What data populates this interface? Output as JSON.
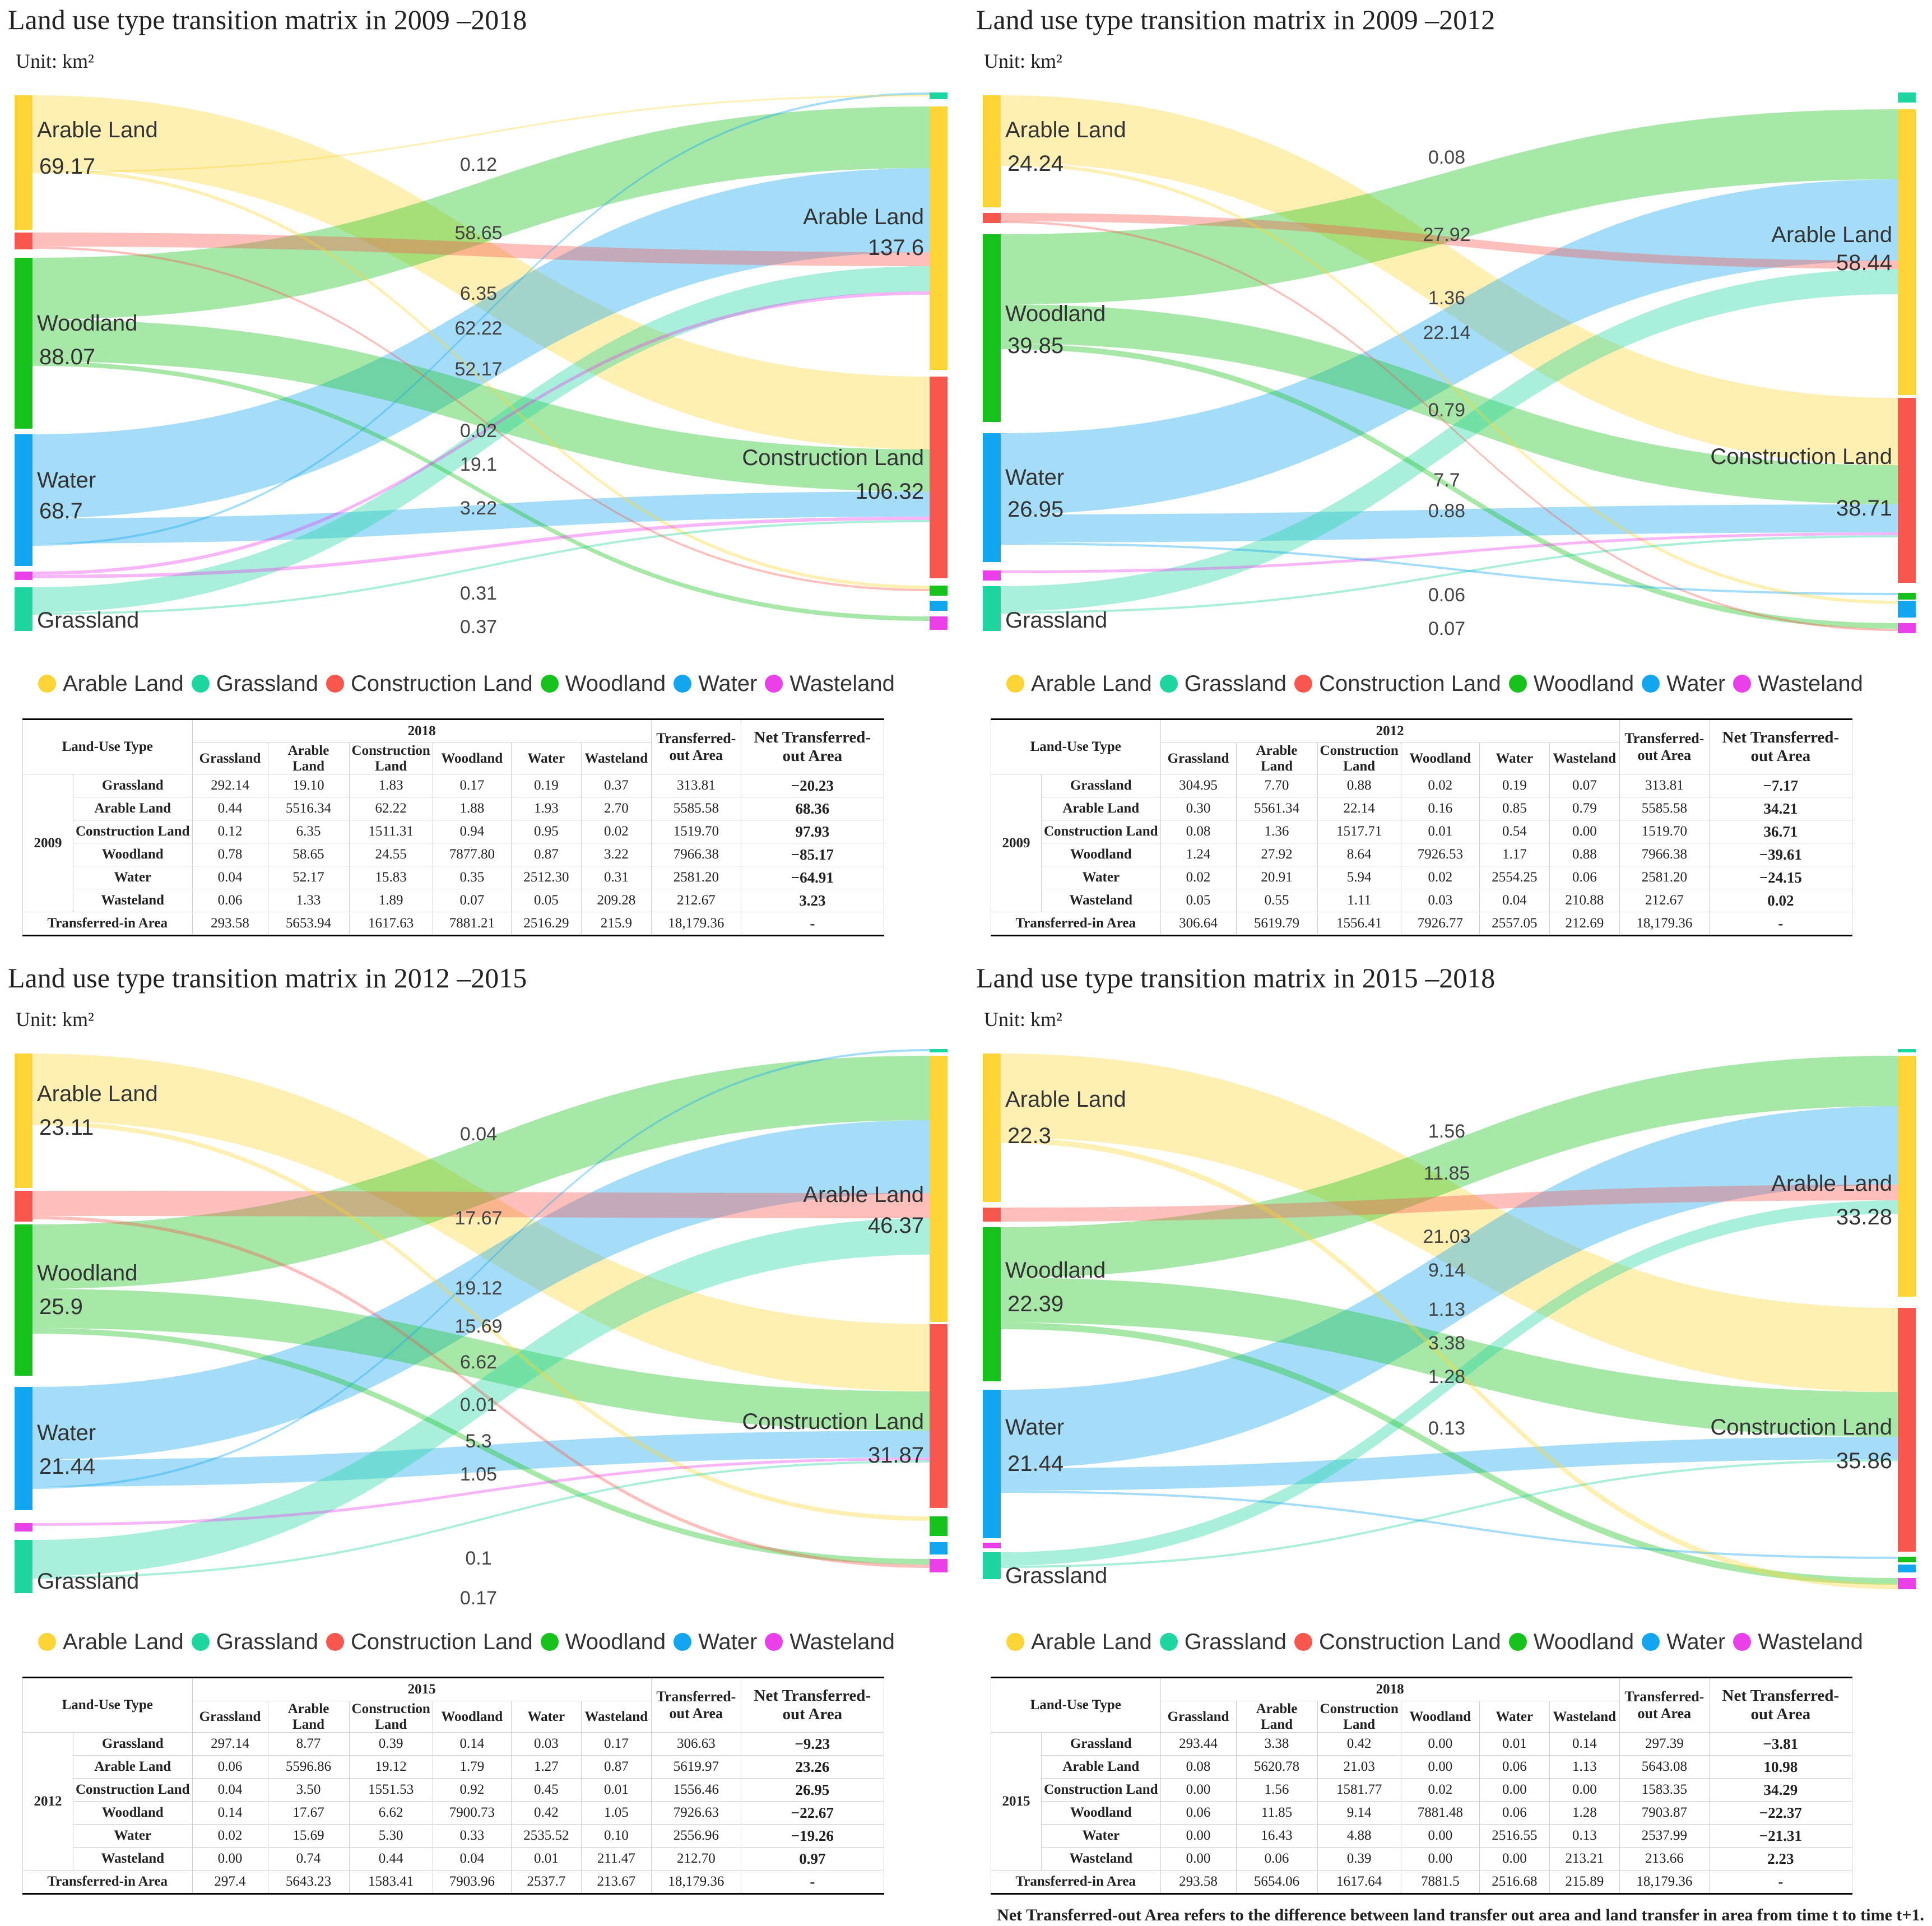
{
  "colors": {
    "arable": "#fcd435",
    "grassland": "#20d6a0",
    "construction": "#f7574f",
    "woodland": "#18c21c",
    "water": "#13a5ef",
    "wasteland": "#ea40e9"
  },
  "legend": [
    "Arable Land",
    "Grassland",
    "Construction Land",
    "Woodland",
    "Water",
    "Wasteland"
  ],
  "unit": "Unit: km²",
  "footnote": "Net Transferred-out Area refers to the difference between land transfer out area and land transfer in area from time t to time t+1.",
  "panels": [
    {
      "title": "Land use type transition matrix in 2009 –2018",
      "from_year": "2009",
      "to_year": "2018",
      "left_labels": [
        {
          "name": "Arable Land",
          "value": "69.17"
        },
        {
          "name": "Woodland",
          "value": "88.07"
        },
        {
          "name": "Water",
          "value": "68.7"
        },
        {
          "name": "Grassland",
          "value": ""
        }
      ],
      "right_labels": [
        {
          "name": "Arable Land",
          "value": "137.6"
        },
        {
          "name": "Construction Land",
          "value": "106.32"
        }
      ],
      "flow_values": [
        "0.12",
        "58.65",
        "6.35",
        "62.22",
        "52.17",
        "0.02",
        "19.1",
        "3.22",
        "0.31",
        "0.37"
      ],
      "table": {
        "header_land_use": "Land-Use Type",
        "columns": [
          "Grassland",
          "Arable Land",
          "Construction Land",
          "Woodland",
          "Water",
          "Wasteland",
          "Transferred-out Area",
          "Net Transferred-out Area"
        ],
        "rows": [
          {
            "type": "Grassland",
            "values": [
              "292.14",
              "19.10",
              "1.83",
              "0.17",
              "0.19",
              "0.37",
              "313.81"
            ],
            "net": "−20.23"
          },
          {
            "type": "Arable Land",
            "values": [
              "0.44",
              "5516.34",
              "62.22",
              "1.88",
              "1.93",
              "2.70",
              "5585.58"
            ],
            "net": "68.36"
          },
          {
            "type": "Construction Land",
            "values": [
              "0.12",
              "6.35",
              "1511.31",
              "0.94",
              "0.95",
              "0.02",
              "1519.70"
            ],
            "net": "97.93"
          },
          {
            "type": "Woodland",
            "values": [
              "0.78",
              "58.65",
              "24.55",
              "7877.80",
              "0.87",
              "3.22",
              "7966.38"
            ],
            "net": "−85.17"
          },
          {
            "type": "Water",
            "values": [
              "0.04",
              "52.17",
              "15.83",
              "0.35",
              "2512.30",
              "0.31",
              "2581.20"
            ],
            "net": "−64.91"
          },
          {
            "type": "Wasteland",
            "values": [
              "0.06",
              "1.33",
              "1.89",
              "0.07",
              "0.05",
              "209.28",
              "212.67"
            ],
            "net": "3.23"
          }
        ],
        "in_label": "Transferred-in Area",
        "in_values": [
          "293.58",
          "5653.94",
          "1617.63",
          "7881.21",
          "2516.29",
          "215.9",
          "18,179.36"
        ],
        "in_net": "-"
      }
    },
    {
      "title": "Land use type transition matrix in 2009 –2012",
      "from_year": "2009",
      "to_year": "2012",
      "left_labels": [
        {
          "name": "Arable Land",
          "value": "24.24"
        },
        {
          "name": "Woodland",
          "value": "39.85"
        },
        {
          "name": "Water",
          "value": "26.95"
        },
        {
          "name": "Grassland",
          "value": ""
        }
      ],
      "right_labels": [
        {
          "name": "Arable Land",
          "value": "58.44"
        },
        {
          "name": "Construction Land",
          "value": "38.71"
        }
      ],
      "flow_values": [
        "0.08",
        "27.92",
        "1.36",
        "22.14",
        "0.79",
        "7.7",
        "0.88",
        "0.06",
        "0.07"
      ],
      "table": {
        "header_land_use": "Land-Use Type",
        "columns": [
          "Grassland",
          "Arable Land",
          "Construction Land",
          "Woodland",
          "Water",
          "Wasteland",
          "Transferred-out Area",
          "Net Transferred-out Area"
        ],
        "rows": [
          {
            "type": "Grassland",
            "values": [
              "304.95",
              "7.70",
              "0.88",
              "0.02",
              "0.19",
              "0.07",
              "313.81"
            ],
            "net": "−7.17"
          },
          {
            "type": "Arable Land",
            "values": [
              "0.30",
              "5561.34",
              "22.14",
              "0.16",
              "0.85",
              "0.79",
              "5585.58"
            ],
            "net": "34.21"
          },
          {
            "type": "Construction Land",
            "values": [
              "0.08",
              "1.36",
              "1517.71",
              "0.01",
              "0.54",
              "0.00",
              "1519.70"
            ],
            "net": "36.71"
          },
          {
            "type": "Woodland",
            "values": [
              "1.24",
              "27.92",
              "8.64",
              "7926.53",
              "1.17",
              "0.88",
              "7966.38"
            ],
            "net": "−39.61"
          },
          {
            "type": "Water",
            "values": [
              "0.02",
              "20.91",
              "5.94",
              "0.02",
              "2554.25",
              "0.06",
              "2581.20"
            ],
            "net": "−24.15"
          },
          {
            "type": "Wasteland",
            "values": [
              "0.05",
              "0.55",
              "1.11",
              "0.03",
              "0.04",
              "210.88",
              "212.67"
            ],
            "net": "0.02"
          }
        ],
        "in_label": "Transferred-in Area",
        "in_values": [
          "306.64",
          "5619.79",
          "1556.41",
          "7926.77",
          "2557.05",
          "212.69",
          "18,179.36"
        ],
        "in_net": "-"
      }
    },
    {
      "title": "Land use type transition matrix in 2012 –2015",
      "from_year": "2012",
      "to_year": "2015",
      "left_labels": [
        {
          "name": "Arable Land",
          "value": "23.11"
        },
        {
          "name": "Woodland",
          "value": "25.9"
        },
        {
          "name": "Water",
          "value": "21.44"
        },
        {
          "name": "Grassland",
          "value": ""
        }
      ],
      "right_labels": [
        {
          "name": "Arable Land",
          "value": "46.37"
        },
        {
          "name": "Construction Land",
          "value": "31.87"
        }
      ],
      "flow_values": [
        "0.04",
        "17.67",
        "19.12",
        "15.69",
        "6.62",
        "0.01",
        "5.3",
        "1.05",
        "0.1",
        "0.17"
      ],
      "table": {
        "header_land_use": "Land-Use Type",
        "columns": [
          "Grassland",
          "Arable Land",
          "Construction Land",
          "Woodland",
          "Water",
          "Wasteland",
          "Transferred-out Area",
          "Net Transferred-out Area"
        ],
        "rows": [
          {
            "type": "Grassland",
            "values": [
              "297.14",
              "8.77",
              "0.39",
              "0.14",
              "0.03",
              "0.17",
              "306.63"
            ],
            "net": "−9.23"
          },
          {
            "type": "Arable Land",
            "values": [
              "0.06",
              "5596.86",
              "19.12",
              "1.79",
              "1.27",
              "0.87",
              "5619.97"
            ],
            "net": "23.26"
          },
          {
            "type": "Construction Land",
            "values": [
              "0.04",
              "3.50",
              "1551.53",
              "0.92",
              "0.45",
              "0.01",
              "1556.46"
            ],
            "net": "26.95"
          },
          {
            "type": "Woodland",
            "values": [
              "0.14",
              "17.67",
              "6.62",
              "7900.73",
              "0.42",
              "1.05",
              "7926.63"
            ],
            "net": "−22.67"
          },
          {
            "type": "Water",
            "values": [
              "0.02",
              "15.69",
              "5.30",
              "0.33",
              "2535.52",
              "0.10",
              "2556.96"
            ],
            "net": "−19.26"
          },
          {
            "type": "Wasteland",
            "values": [
              "0.00",
              "0.74",
              "0.44",
              "0.04",
              "0.01",
              "211.47",
              "212.70"
            ],
            "net": "0.97"
          }
        ],
        "in_label": "Transferred-in Area",
        "in_values": [
          "297.4",
          "5643.23",
          "1583.41",
          "7903.96",
          "2537.7",
          "213.67",
          "18,179.36"
        ],
        "in_net": "-"
      }
    },
    {
      "title": "Land use type transition matrix in 2015 –2018",
      "from_year": "2015",
      "to_year": "2018",
      "left_labels": [
        {
          "name": "Arable Land",
          "value": "22.3"
        },
        {
          "name": "Woodland",
          "value": "22.39"
        },
        {
          "name": "Water",
          "value": "21.44"
        },
        {
          "name": "Grassland",
          "value": ""
        }
      ],
      "right_labels": [
        {
          "name": "Arable Land",
          "value": "33.28"
        },
        {
          "name": "Construction Land",
          "value": "35.86"
        }
      ],
      "flow_values": [
        "1.56",
        "11.85",
        "21.03",
        "9.14",
        "1.13",
        "3.38",
        "1.28",
        "0.13"
      ],
      "table": {
        "header_land_use": "Land-Use Type",
        "columns": [
          "Grassland",
          "Arable Land",
          "Construction Land",
          "Woodland",
          "Water",
          "Wasteland",
          "Transferred-out Area",
          "Net Transferred-out Area"
        ],
        "rows": [
          {
            "type": "Grassland",
            "values": [
              "293.44",
              "3.38",
              "0.42",
              "0.00",
              "0.01",
              "0.14",
              "297.39"
            ],
            "net": "−3.81"
          },
          {
            "type": "Arable Land",
            "values": [
              "0.08",
              "5620.78",
              "21.03",
              "0.00",
              "0.06",
              "1.13",
              "5643.08"
            ],
            "net": "10.98"
          },
          {
            "type": "Construction Land",
            "values": [
              "0.00",
              "1.56",
              "1581.77",
              "0.02",
              "0.00",
              "0.00",
              "1583.35"
            ],
            "net": "34.29"
          },
          {
            "type": "Woodland",
            "values": [
              "0.06",
              "11.85",
              "9.14",
              "7881.48",
              "0.06",
              "1.28",
              "7903.87"
            ],
            "net": "−22.37"
          },
          {
            "type": "Water",
            "values": [
              "0.00",
              "16.43",
              "4.88",
              "0.00",
              "2516.55",
              "0.13",
              "2537.99"
            ],
            "net": "−21.31"
          },
          {
            "type": "Wasteland",
            "values": [
              "0.00",
              "0.06",
              "0.39",
              "0.00",
              "0.00",
              "213.21",
              "213.66"
            ],
            "net": "2.23"
          }
        ],
        "in_label": "Transferred-in Area",
        "in_values": [
          "293.58",
          "5654.06",
          "1617.64",
          "7881.5",
          "2516.68",
          "215.89",
          "18,179.36"
        ],
        "in_net": "-"
      }
    }
  ],
  "chart_data": [
    {
      "type": "sankey",
      "title": "Land use type transition matrix in 2009 –2018",
      "unit": "km²",
      "links": [
        [
          "Arable Land",
          "Construction Land",
          62.22
        ],
        [
          "Woodland",
          "Arable Land",
          58.65
        ],
        [
          "Water",
          "Arable Land",
          52.17
        ],
        [
          "Woodland",
          "Construction Land",
          24.55
        ],
        [
          "Grassland",
          "Arable Land",
          19.1
        ],
        [
          "Water",
          "Construction Land",
          15.83
        ],
        [
          "Construction Land",
          "Arable Land",
          6.35
        ],
        [
          "Woodland",
          "Wasteland",
          3.22
        ]
      ]
    },
    {
      "type": "sankey",
      "title": "Land use type transition matrix in 2009 –2012",
      "unit": "km²",
      "links": [
        [
          "Woodland",
          "Arable Land",
          27.92
        ],
        [
          "Arable Land",
          "Construction Land",
          22.14
        ],
        [
          "Water",
          "Arable Land",
          20.91
        ],
        [
          "Woodland",
          "Construction Land",
          8.64
        ],
        [
          "Grassland",
          "Arable Land",
          7.7
        ],
        [
          "Water",
          "Construction Land",
          5.94
        ],
        [
          "Construction Land",
          "Arable Land",
          1.36
        ]
      ]
    },
    {
      "type": "sankey",
      "title": "Land use type transition matrix in 2012 –2015",
      "unit": "km²",
      "links": [
        [
          "Arable Land",
          "Construction Land",
          19.12
        ],
        [
          "Woodland",
          "Arable Land",
          17.67
        ],
        [
          "Water",
          "Arable Land",
          15.69
        ],
        [
          "Grassland",
          "Arable Land",
          8.77
        ],
        [
          "Woodland",
          "Construction Land",
          6.62
        ],
        [
          "Water",
          "Construction Land",
          5.3
        ],
        [
          "Construction Land",
          "Arable Land",
          3.5
        ]
      ]
    },
    {
      "type": "sankey",
      "title": "Land use type transition matrix in 2015 –2018",
      "unit": "km²",
      "links": [
        [
          "Arable Land",
          "Construction Land",
          21.03
        ],
        [
          "Water",
          "Arable Land",
          16.43
        ],
        [
          "Woodland",
          "Arable Land",
          11.85
        ],
        [
          "Woodland",
          "Construction Land",
          9.14
        ],
        [
          "Water",
          "Construction Land",
          4.88
        ],
        [
          "Grassland",
          "Arable Land",
          3.38
        ],
        [
          "Construction Land",
          "Arable Land",
          1.56
        ]
      ]
    }
  ]
}
